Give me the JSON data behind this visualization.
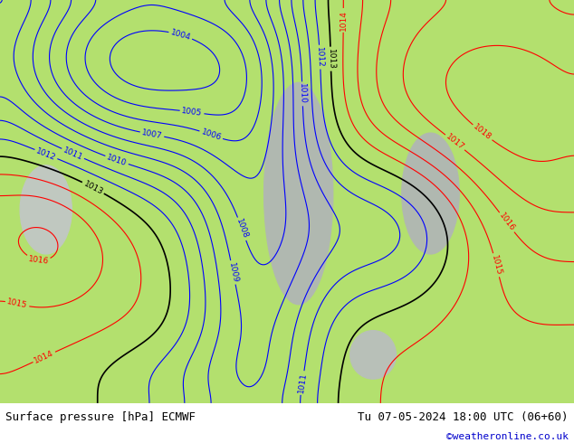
{
  "title_left": "Surface pressure [hPa] ECMWF",
  "title_right": "Tu 07-05-2024 18:00 UTC (06+60)",
  "copyright": "©weatheronline.co.uk",
  "bg_color": "#b3e06e",
  "land_color": "#c8e896",
  "sea_color": "#a8d060",
  "water_color": "#b0d8f0",
  "contour_colors": {
    "blue": "#0000ff",
    "red": "#ff0000",
    "black": "#000000"
  },
  "footer_bg": "#d4f0a0",
  "footer_text_color": "#000000",
  "copyright_color": "#0000cc",
  "figsize": [
    6.34,
    4.9
  ],
  "dpi": 100,
  "pressure_min": 1000,
  "pressure_max": 1020,
  "contour_interval": 1
}
